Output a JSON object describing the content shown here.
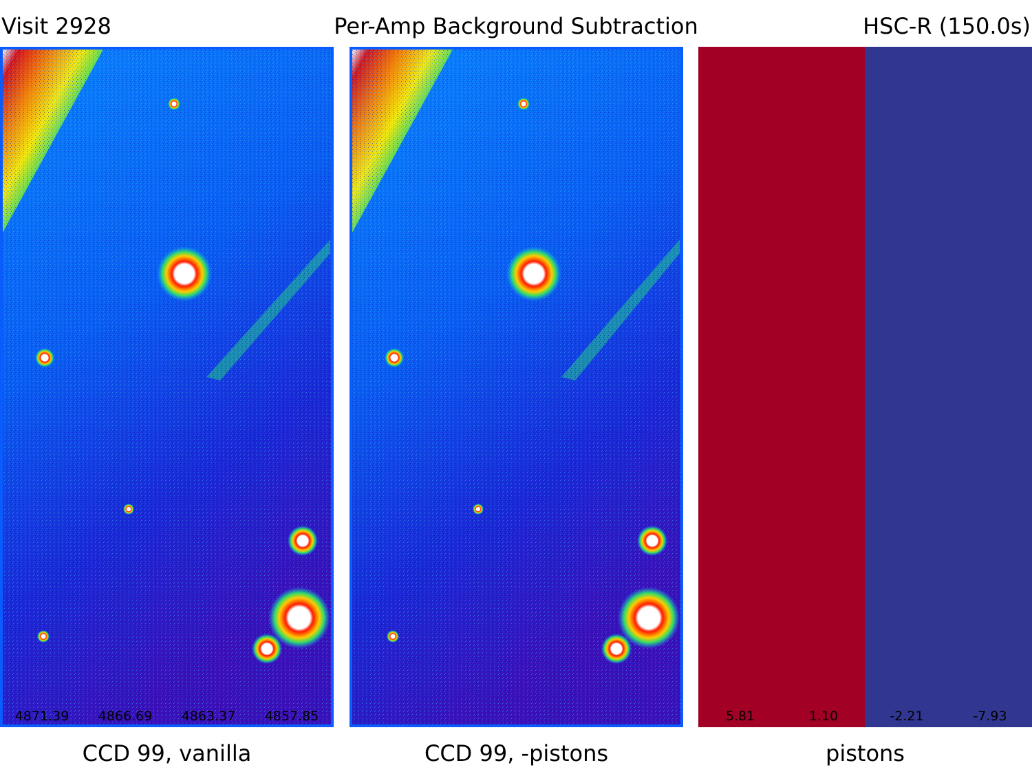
{
  "header": {
    "left": "Visit 2928",
    "center": "Per-Amp Background Subtraction",
    "right": "HSC-R (150.0s)"
  },
  "panels": [
    {
      "caption": "CCD 99, vanilla",
      "amp_values": [
        "4871.39",
        "4866.69",
        "4863.37",
        "4857.85"
      ]
    },
    {
      "caption": "CCD 99, -pistons",
      "amp_values": []
    },
    {
      "caption": "pistons",
      "amp_values": [
        "5.81",
        "1.10",
        "-2.21",
        "-7.93"
      ],
      "colors": [
        "#a20025",
        "#a20025",
        "#313690",
        "#313690"
      ]
    }
  ],
  "colormap": {
    "background_deep": "#1a1fd0",
    "background_light": "#0a72ff",
    "frame": "#0a5cff",
    "source_halo": "#ff2200",
    "saturated": "#ffffff"
  }
}
